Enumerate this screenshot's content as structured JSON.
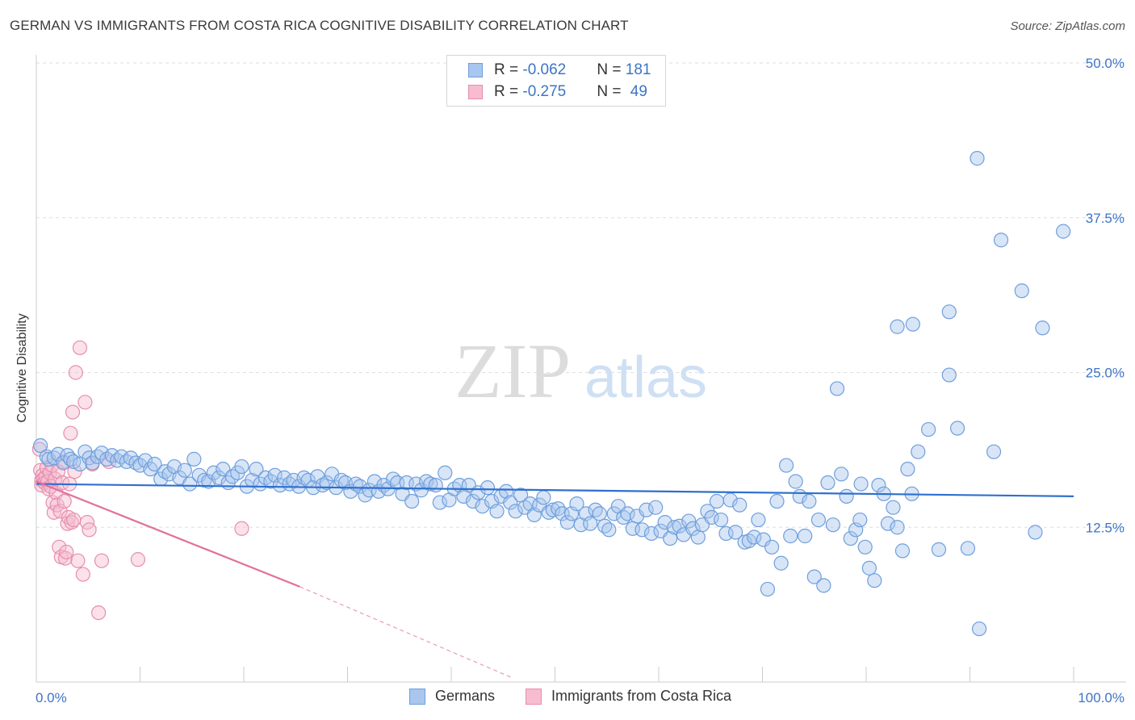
{
  "title": "GERMAN VS IMMIGRANTS FROM COSTA RICA COGNITIVE DISABILITY CORRELATION CHART",
  "source": "Source: ZipAtlas.com",
  "watermark": {
    "zip": "ZIP",
    "atlas": "atlas"
  },
  "legend_top": {
    "rows": [
      {
        "r_label": "R = ",
        "r_value": "-0.062",
        "n_label": "N = ",
        "n_value": "181",
        "color": "#a8c6ee",
        "border": "#6e9fdc"
      },
      {
        "r_label": "R = ",
        "r_value": "-0.275",
        "n_label": "N = ",
        "n_value": "49",
        "color": "#f7bcd0",
        "border": "#e58fae"
      }
    ]
  },
  "legend_bottom": [
    {
      "label": "Germans",
      "color": "#a8c6ee",
      "border": "#6e9fdc"
    },
    {
      "label": "Immigrants from Costa Rica",
      "color": "#f7bcd0",
      "border": "#e58fae"
    }
  ],
  "chart_data": {
    "type": "scatter",
    "title": "GERMAN VS IMMIGRANTS FROM COSTA RICA COGNITIVE DISABILITY CORRELATION CHART",
    "xlabel": "",
    "ylabel": "Cognitive Disability",
    "xlim": [
      0,
      100
    ],
    "ylim": [
      0,
      50
    ],
    "x_tick_labels": [
      "0.0%",
      "100.0%"
    ],
    "y_ticks": [
      12.5,
      25.0,
      37.5,
      50.0
    ],
    "y_tick_labels": [
      "12.5%",
      "25.0%",
      "37.5%",
      "50.0%"
    ],
    "grid": true,
    "colors": {
      "blue_fill": "#a8c6ee",
      "blue_stroke": "#6e9fdc",
      "blue_line": "#2f6fce",
      "pink_fill": "#f7bcd0",
      "pink_stroke": "#e58fae",
      "pink_line": "#e0709a",
      "tick_label": "#3d74c6"
    },
    "series": [
      {
        "name": "Germans",
        "trend": {
          "x0": 0,
          "y0": 16.0,
          "x1": 100,
          "y1": 15.0
        },
        "points": [
          [
            0.4,
            19.1
          ],
          [
            1.0,
            18.2
          ],
          [
            1.2,
            18.0
          ],
          [
            1.7,
            18.1
          ],
          [
            2.1,
            18.4
          ],
          [
            2.6,
            17.7
          ],
          [
            3.0,
            18.3
          ],
          [
            3.3,
            18.0
          ],
          [
            3.6,
            17.8
          ],
          [
            4.2,
            17.6
          ],
          [
            4.7,
            18.6
          ],
          [
            5.1,
            18.1
          ],
          [
            5.4,
            17.7
          ],
          [
            5.9,
            18.2
          ],
          [
            6.3,
            18.5
          ],
          [
            6.8,
            18.0
          ],
          [
            7.3,
            18.3
          ],
          [
            7.8,
            17.9
          ],
          [
            8.2,
            18.2
          ],
          [
            8.7,
            17.8
          ],
          [
            9.1,
            18.1
          ],
          [
            9.6,
            17.7
          ],
          [
            10.0,
            17.5
          ],
          [
            10.5,
            17.9
          ],
          [
            11.0,
            17.2
          ],
          [
            11.4,
            17.6
          ],
          [
            12.0,
            16.4
          ],
          [
            12.4,
            17.0
          ],
          [
            12.8,
            16.8
          ],
          [
            13.3,
            17.4
          ],
          [
            13.8,
            16.5
          ],
          [
            14.3,
            17.1
          ],
          [
            14.8,
            16.0
          ],
          [
            15.2,
            18.0
          ],
          [
            15.7,
            16.7
          ],
          [
            16.2,
            16.3
          ],
          [
            16.6,
            16.2
          ],
          [
            17.1,
            16.9
          ],
          [
            17.6,
            16.5
          ],
          [
            18.0,
            17.2
          ],
          [
            18.5,
            16.1
          ],
          [
            18.9,
            16.6
          ],
          [
            19.4,
            16.9
          ],
          [
            19.8,
            17.4
          ],
          [
            20.3,
            15.8
          ],
          [
            20.8,
            16.3
          ],
          [
            21.2,
            17.2
          ],
          [
            21.6,
            16.0
          ],
          [
            22.1,
            16.5
          ],
          [
            22.6,
            16.2
          ],
          [
            23.0,
            16.7
          ],
          [
            23.5,
            15.9
          ],
          [
            23.9,
            16.5
          ],
          [
            24.4,
            16.0
          ],
          [
            24.8,
            16.3
          ],
          [
            25.3,
            15.8
          ],
          [
            25.8,
            16.5
          ],
          [
            26.2,
            16.3
          ],
          [
            26.7,
            15.7
          ],
          [
            27.1,
            16.6
          ],
          [
            27.6,
            15.9
          ],
          [
            28.0,
            16.1
          ],
          [
            28.5,
            16.8
          ],
          [
            28.9,
            15.7
          ],
          [
            29.4,
            16.3
          ],
          [
            29.8,
            16.1
          ],
          [
            30.3,
            15.4
          ],
          [
            30.8,
            16.0
          ],
          [
            31.2,
            15.8
          ],
          [
            31.7,
            15.1
          ],
          [
            32.1,
            15.5
          ],
          [
            32.6,
            16.2
          ],
          [
            33.0,
            15.4
          ],
          [
            33.5,
            15.9
          ],
          [
            33.9,
            15.6
          ],
          [
            34.4,
            16.4
          ],
          [
            34.8,
            16.1
          ],
          [
            35.3,
            15.2
          ],
          [
            35.7,
            16.1
          ],
          [
            36.2,
            14.6
          ],
          [
            36.6,
            16.0
          ],
          [
            37.1,
            15.5
          ],
          [
            37.6,
            16.2
          ],
          [
            38.0,
            16.0
          ],
          [
            38.5,
            15.9
          ],
          [
            38.9,
            14.5
          ],
          [
            39.4,
            16.9
          ],
          [
            39.8,
            14.7
          ],
          [
            40.3,
            15.6
          ],
          [
            40.8,
            15.9
          ],
          [
            41.2,
            15.0
          ],
          [
            41.7,
            15.9
          ],
          [
            42.1,
            14.6
          ],
          [
            42.6,
            15.3
          ],
          [
            43.0,
            14.2
          ],
          [
            43.5,
            15.7
          ],
          [
            43.9,
            14.6
          ],
          [
            44.4,
            13.8
          ],
          [
            44.8,
            15.0
          ],
          [
            45.3,
            15.4
          ],
          [
            45.7,
            14.5
          ],
          [
            46.2,
            13.8
          ],
          [
            46.7,
            15.1
          ],
          [
            47.1,
            14.1
          ],
          [
            47.6,
            14.4
          ],
          [
            48.0,
            13.5
          ],
          [
            48.5,
            14.3
          ],
          [
            48.9,
            14.9
          ],
          [
            49.4,
            13.7
          ],
          [
            49.8,
            13.9
          ],
          [
            50.3,
            14.0
          ],
          [
            50.7,
            13.6
          ],
          [
            51.2,
            12.9
          ],
          [
            51.6,
            13.6
          ],
          [
            52.1,
            14.4
          ],
          [
            52.5,
            12.7
          ],
          [
            53.0,
            13.6
          ],
          [
            53.4,
            12.8
          ],
          [
            53.9,
            13.9
          ],
          [
            54.3,
            13.6
          ],
          [
            54.8,
            12.6
          ],
          [
            55.2,
            12.3
          ],
          [
            55.7,
            13.6
          ],
          [
            56.1,
            14.2
          ],
          [
            56.6,
            13.3
          ],
          [
            57.0,
            13.6
          ],
          [
            57.5,
            12.4
          ],
          [
            57.9,
            13.4
          ],
          [
            58.4,
            12.3
          ],
          [
            58.8,
            13.9
          ],
          [
            59.3,
            12.0
          ],
          [
            59.7,
            14.1
          ],
          [
            60.2,
            12.2
          ],
          [
            60.6,
            12.9
          ],
          [
            61.1,
            11.6
          ],
          [
            61.5,
            12.5
          ],
          [
            62.0,
            12.6
          ],
          [
            62.4,
            11.9
          ],
          [
            62.9,
            13.0
          ],
          [
            63.3,
            12.4
          ],
          [
            63.8,
            11.7
          ],
          [
            64.2,
            12.7
          ],
          [
            64.7,
            13.8
          ],
          [
            65.1,
            13.3
          ],
          [
            65.6,
            14.6
          ],
          [
            66.0,
            13.1
          ],
          [
            66.5,
            12.0
          ],
          [
            66.9,
            14.7
          ],
          [
            67.4,
            12.1
          ],
          [
            67.8,
            14.3
          ],
          [
            68.3,
            11.3
          ],
          [
            68.7,
            11.4
          ],
          [
            69.2,
            11.7
          ],
          [
            69.6,
            13.1
          ],
          [
            70.1,
            11.5
          ],
          [
            70.5,
            7.5
          ],
          [
            70.9,
            10.9
          ],
          [
            71.4,
            14.6
          ],
          [
            71.8,
            9.6
          ],
          [
            72.3,
            17.5
          ],
          [
            72.7,
            11.8
          ],
          [
            73.2,
            16.2
          ],
          [
            73.6,
            15.0
          ],
          [
            74.1,
            11.8
          ],
          [
            74.5,
            14.6
          ],
          [
            75.0,
            8.5
          ],
          [
            75.4,
            13.1
          ],
          [
            75.9,
            7.8
          ],
          [
            76.3,
            16.1
          ],
          [
            76.8,
            12.7
          ],
          [
            77.2,
            23.7
          ],
          [
            77.6,
            16.8
          ],
          [
            78.1,
            15.0
          ],
          [
            78.5,
            11.6
          ],
          [
            79.0,
            12.3
          ],
          [
            79.4,
            13.1
          ],
          [
            79.9,
            10.9
          ],
          [
            80.3,
            9.2
          ],
          [
            80.8,
            8.2
          ],
          [
            81.2,
            15.9
          ],
          [
            81.7,
            15.2
          ],
          [
            82.1,
            12.8
          ],
          [
            82.6,
            14.1
          ],
          [
            83.0,
            12.5
          ],
          [
            83.5,
            10.6
          ],
          [
            84.0,
            17.2
          ],
          [
            84.4,
            15.2
          ],
          [
            85.0,
            18.6
          ],
          [
            86.0,
            20.4
          ],
          [
            87.0,
            10.7
          ],
          [
            88.0,
            24.8
          ],
          [
            88.8,
            20.5
          ],
          [
            89.8,
            10.8
          ],
          [
            90.7,
            42.3
          ],
          [
            90.9,
            4.3
          ],
          [
            92.3,
            18.6
          ],
          [
            93.0,
            35.7
          ],
          [
            95.0,
            31.6
          ],
          [
            96.3,
            12.1
          ],
          [
            97.0,
            28.6
          ],
          [
            99.0,
            36.4
          ],
          [
            84.5,
            28.9
          ],
          [
            83.0,
            28.7
          ],
          [
            88.0,
            29.9
          ],
          [
            79.5,
            16.0
          ]
        ]
      },
      {
        "name": "Immigrants from Costa Rica",
        "trend": {
          "x0": 0,
          "y0": 16.2,
          "x1": 25.4,
          "y1": 7.7
        },
        "trend_dashed_end": {
          "x": 46,
          "y": 0.3
        },
        "points": [
          [
            0.3,
            18.8
          ],
          [
            0.4,
            17.1
          ],
          [
            0.5,
            16.3
          ],
          [
            0.5,
            15.9
          ],
          [
            0.6,
            16.7
          ],
          [
            0.7,
            16.4
          ],
          [
            0.8,
            16.1
          ],
          [
            0.9,
            16.6
          ],
          [
            1.0,
            17.3
          ],
          [
            1.1,
            16.2
          ],
          [
            1.2,
            15.6
          ],
          [
            1.3,
            16.9
          ],
          [
            1.4,
            15.8
          ],
          [
            1.5,
            17.5
          ],
          [
            1.6,
            14.5
          ],
          [
            1.7,
            13.7
          ],
          [
            1.8,
            16.4
          ],
          [
            1.9,
            15.3
          ],
          [
            2.0,
            14.3
          ],
          [
            2.1,
            17.0
          ],
          [
            2.2,
            10.9
          ],
          [
            2.3,
            13.8
          ],
          [
            2.4,
            10.1
          ],
          [
            2.5,
            16.1
          ],
          [
            2.6,
            17.8
          ],
          [
            2.7,
            14.6
          ],
          [
            2.8,
            10.0
          ],
          [
            2.9,
            10.5
          ],
          [
            3.0,
            12.8
          ],
          [
            3.1,
            13.3
          ],
          [
            3.2,
            16.0
          ],
          [
            3.3,
            20.1
          ],
          [
            3.4,
            12.9
          ],
          [
            3.5,
            21.8
          ],
          [
            3.6,
            13.1
          ],
          [
            3.7,
            17.0
          ],
          [
            3.8,
            25.0
          ],
          [
            4.0,
            9.8
          ],
          [
            4.2,
            27.0
          ],
          [
            4.5,
            8.7
          ],
          [
            4.7,
            22.6
          ],
          [
            4.9,
            12.9
          ],
          [
            5.1,
            12.3
          ],
          [
            5.4,
            17.6
          ],
          [
            6.0,
            5.6
          ],
          [
            6.3,
            9.8
          ],
          [
            7.0,
            17.8
          ],
          [
            9.8,
            9.9
          ],
          [
            19.8,
            12.4
          ]
        ]
      }
    ]
  }
}
